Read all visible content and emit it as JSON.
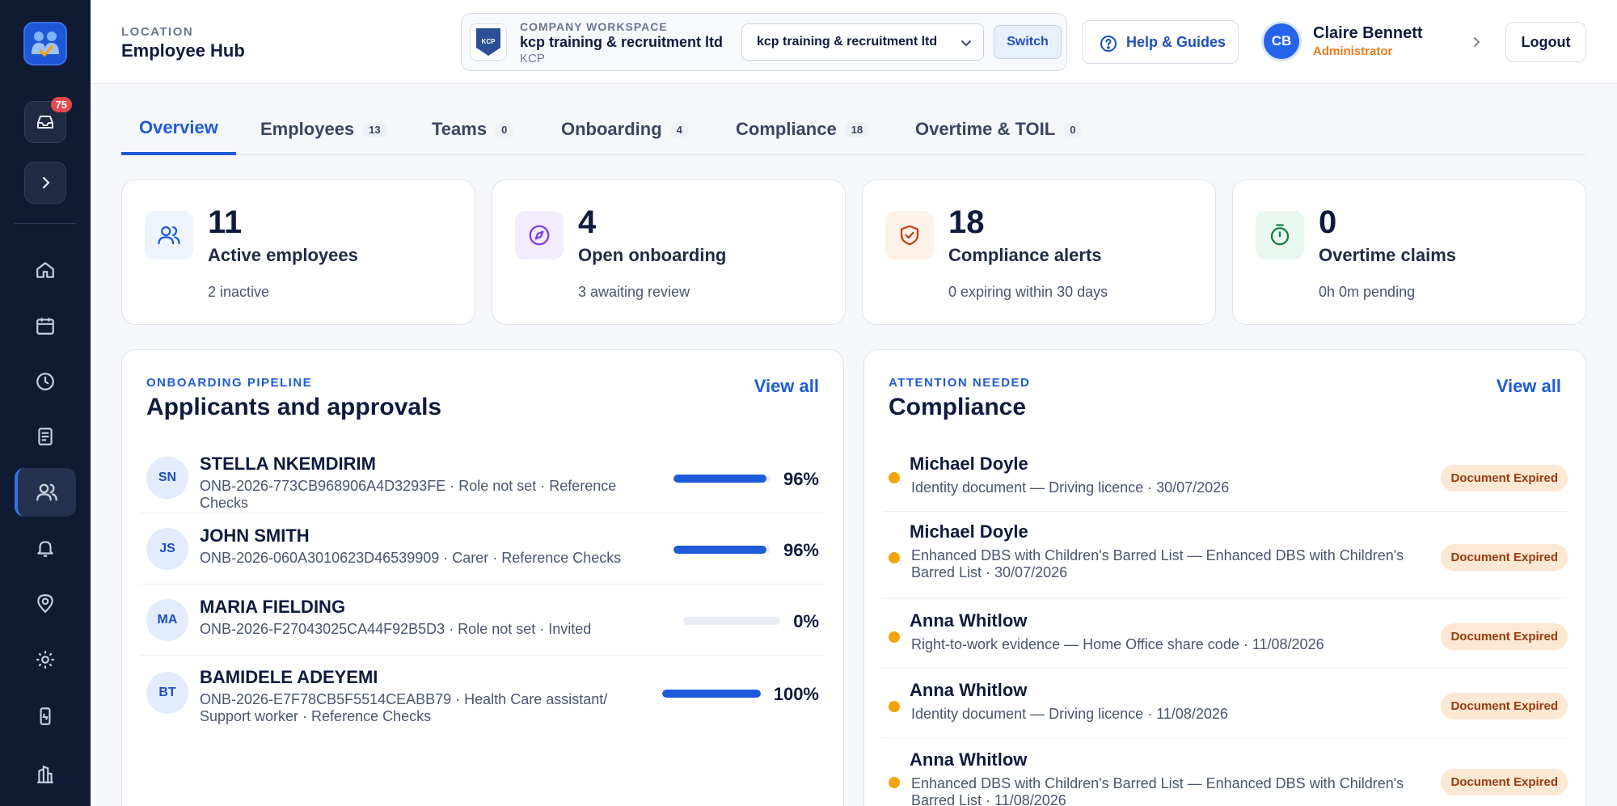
{
  "sidebar": {
    "inbox_badge": "75",
    "colors": {
      "bg": "#0f1b33",
      "accent": "#3b6fe6"
    },
    "icons": [
      "home-icon",
      "calendar-icon",
      "clock-icon",
      "document-icon",
      "users-icon",
      "bell-icon",
      "location-pin-icon",
      "gear-icon",
      "device-icon",
      "buildings-icon"
    ]
  },
  "header": {
    "location_label": "LOCATION",
    "location_title": "Employee Hub",
    "workspace": {
      "label": "COMPANY WORKSPACE",
      "name": "kcp training & recruitment ltd",
      "code": "KCP",
      "logo_text": "KCP",
      "select_value": "kcp training & recruitment ltd",
      "switch_label": "Switch"
    },
    "help_label": "Help & Guides",
    "user": {
      "initials": "CB",
      "name": "Claire Bennett",
      "role": "Administrator"
    },
    "logout_label": "Logout"
  },
  "tabs": [
    {
      "label": "Overview",
      "count": ""
    },
    {
      "label": "Employees",
      "count": "13"
    },
    {
      "label": "Teams",
      "count": "0"
    },
    {
      "label": "Onboarding",
      "count": "4"
    },
    {
      "label": "Compliance",
      "count": "18"
    },
    {
      "label": "Overtime & TOIL",
      "count": "0"
    }
  ],
  "stats": [
    {
      "value": "11",
      "label": "Active employees",
      "sub": "2 inactive",
      "icon": "users-icon",
      "color": "#1e5bd8"
    },
    {
      "value": "4",
      "label": "Open onboarding",
      "sub": "3 awaiting review",
      "icon": "compass-icon",
      "color": "#7c3aed"
    },
    {
      "value": "18",
      "label": "Compliance alerts",
      "sub": "0 expiring within 30 days",
      "icon": "shield-check-icon",
      "color": "#c2410c"
    },
    {
      "value": "0",
      "label": "Overtime claims",
      "sub": "0h 0m pending",
      "icon": "stopwatch-icon",
      "color": "#15803d"
    }
  ],
  "onboarding": {
    "kicker": "ONBOARDING PIPELINE",
    "title": "Applicants and approvals",
    "view_all": "View all",
    "rows": [
      {
        "initials": "SN",
        "name": "STELLA NKEMDIRIM",
        "desc": "ONB-2026-773CB968906A4D3293FE · Role not set · Reference Checks",
        "progress": 96,
        "pct": "96%"
      },
      {
        "initials": "JS",
        "name": "JOHN SMITH",
        "desc": "ONB-2026-060A3010623D46539909 · Carer · Reference Checks",
        "progress": 96,
        "pct": "96%"
      },
      {
        "initials": "MA",
        "name": "MARIA FIELDING",
        "desc": "ONB-2026-F27043025CA44F92B5D3 · Role not set · Invited",
        "progress": 0,
        "pct": "0%"
      },
      {
        "initials": "BT",
        "name": "BAMIDELE ADEYEMI",
        "desc": "ONB-2026-E7F78CB5F5514CEABB79 · Health Care assistant/ Support worker · Reference Checks",
        "progress": 100,
        "pct": "100%"
      }
    ]
  },
  "compliance": {
    "kicker": "ATTENTION NEEDED",
    "title": "Compliance",
    "view_all": "View all",
    "rows": [
      {
        "name": "Michael Doyle",
        "desc": "Identity document — Driving licence · 30/07/2026",
        "status": "Document Expired"
      },
      {
        "name": "Michael Doyle",
        "desc": "Enhanced DBS with Children's Barred List — Enhanced DBS with Children's Barred List · 30/07/2026",
        "status": "Document Expired"
      },
      {
        "name": "Anna Whitlow",
        "desc": "Right-to-work evidence — Home Office share code · 11/08/2026",
        "status": "Document Expired"
      },
      {
        "name": "Anna Whitlow",
        "desc": "Identity document — Driving licence · 11/08/2026",
        "status": "Document Expired"
      },
      {
        "name": "Anna Whitlow",
        "desc": "Enhanced DBS with Children's Barred List — Enhanced DBS with Children's Barred List · 11/08/2026",
        "status": "Document Expired"
      }
    ]
  }
}
